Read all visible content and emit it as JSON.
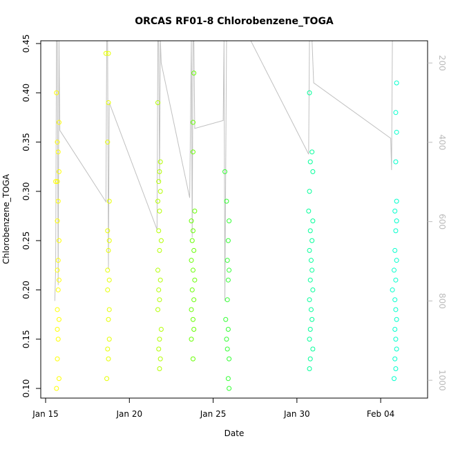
{
  "chart_data": {
    "type": "scatter",
    "title": "ORCAS RF01-8 Chlorobenzene_TOGA",
    "xlabel": "Date",
    "ylabel": "Chlorobenzene_TOGA",
    "xlim": [
      14.71,
      37.8
    ],
    "xticks": [
      {
        "value": 15,
        "label": "Jan 15"
      },
      {
        "value": 20,
        "label": "Jan 20"
      },
      {
        "value": 25,
        "label": "Jan 25"
      },
      {
        "value": 30,
        "label": "Jan 30"
      },
      {
        "value": 35,
        "label": "Feb 04"
      }
    ],
    "ylim": [
      0.0902,
      0.4528
    ],
    "yticks": [
      {
        "value": 0.1,
        "label": "0.10"
      },
      {
        "value": 0.15,
        "label": "0.15"
      },
      {
        "value": 0.2,
        "label": "0.20"
      },
      {
        "value": 0.25,
        "label": "0.25"
      },
      {
        "value": 0.3,
        "label": "0.30"
      },
      {
        "value": 0.35,
        "label": "0.35"
      },
      {
        "value": 0.4,
        "label": "0.40"
      },
      {
        "value": 0.45,
        "label": "0.45"
      }
    ],
    "y2lim": [
      1045,
      144
    ],
    "y2ticks": [
      200,
      400,
      600,
      800,
      1000
    ],
    "series": [
      {
        "color": "#ffff00",
        "x": [
          15.65,
          15.8,
          15.7,
          15.75,
          15.8,
          15.7,
          15.6,
          15.75,
          15.7,
          15.8,
          15.75,
          15.7,
          15.8,
          15.75,
          15.7,
          15.8,
          15.7,
          15.75,
          15.7,
          15.8,
          15.65
        ],
        "values": [
          0.4,
          0.37,
          0.35,
          0.34,
          0.32,
          0.31,
          0.31,
          0.29,
          0.27,
          0.25,
          0.23,
          0.22,
          0.21,
          0.2,
          0.18,
          0.17,
          0.16,
          0.15,
          0.13,
          0.11,
          0.1
        ]
      },
      {
        "color": "#e6ff00",
        "x": [
          18.6,
          18.75,
          18.75,
          18.7,
          18.8,
          18.7,
          18.8,
          18.75,
          18.7,
          18.8,
          18.7,
          18.8,
          18.75,
          18.8,
          18.7,
          18.75,
          18.65
        ],
        "values": [
          0.44,
          0.44,
          0.39,
          0.35,
          0.29,
          0.26,
          0.25,
          0.24,
          0.22,
          0.21,
          0.2,
          0.18,
          0.17,
          0.15,
          0.14,
          0.13,
          0.11
        ]
      },
      {
        "color": "#b3ff00",
        "x": [
          21.7,
          21.85,
          21.8,
          21.75,
          21.85,
          21.7,
          21.8,
          21.75,
          21.9,
          21.8,
          21.7,
          21.85,
          21.75,
          21.8,
          21.7,
          21.9,
          21.8,
          21.75,
          21.85,
          21.8
        ],
        "values": [
          0.39,
          0.33,
          0.32,
          0.31,
          0.3,
          0.29,
          0.28,
          0.26,
          0.25,
          0.24,
          0.22,
          0.21,
          0.2,
          0.19,
          0.18,
          0.16,
          0.15,
          0.14,
          0.13,
          0.12
        ]
      },
      {
        "color": "#66ff00",
        "x": [
          23.85,
          23.8,
          23.8,
          23.9,
          23.7,
          23.8,
          23.75,
          23.85,
          23.7,
          23.8,
          23.9,
          23.75,
          23.85,
          23.7,
          23.8,
          23.85,
          23.7,
          23.8
        ],
        "values": [
          0.42,
          0.37,
          0.34,
          0.28,
          0.27,
          0.26,
          0.25,
          0.24,
          0.23,
          0.22,
          0.21,
          0.2,
          0.19,
          0.18,
          0.17,
          0.16,
          0.15,
          0.13
        ]
      },
      {
        "color": "#33ff33",
        "x": [
          25.7,
          25.8,
          25.95,
          25.9,
          25.85,
          25.95,
          25.9,
          25.85,
          25.75,
          25.9,
          25.8,
          25.85,
          25.95,
          25.9,
          25.95
        ],
        "values": [
          0.32,
          0.29,
          0.27,
          0.25,
          0.23,
          0.22,
          0.21,
          0.19,
          0.17,
          0.16,
          0.15,
          0.14,
          0.13,
          0.11,
          0.1
        ]
      },
      {
        "color": "#00ff99",
        "x": [
          30.75,
          30.9,
          30.8,
          30.95,
          30.75,
          30.7,
          30.95,
          30.8,
          30.9,
          30.75,
          30.85,
          30.9,
          30.8,
          30.95,
          30.75,
          30.85,
          30.9,
          30.8,
          30.75,
          30.95,
          30.8,
          30.75
        ],
        "values": [
          0.4,
          0.34,
          0.33,
          0.32,
          0.3,
          0.28,
          0.27,
          0.26,
          0.25,
          0.24,
          0.23,
          0.22,
          0.21,
          0.2,
          0.19,
          0.18,
          0.17,
          0.16,
          0.15,
          0.14,
          0.13,
          0.12
        ]
      },
      {
        "color": "#00ffcc",
        "x": [
          35.95,
          35.9,
          35.95,
          35.9,
          35.95,
          35.85,
          35.95,
          35.9,
          35.85,
          35.95,
          35.8,
          35.9,
          35.7,
          35.85,
          35.9,
          35.95,
          35.85,
          35.9,
          35.95,
          35.85,
          35.9,
          35.8
        ],
        "values": [
          0.41,
          0.38,
          0.36,
          0.33,
          0.29,
          0.28,
          0.27,
          0.26,
          0.24,
          0.23,
          0.22,
          0.21,
          0.2,
          0.19,
          0.18,
          0.17,
          0.16,
          0.15,
          0.14,
          0.13,
          0.12,
          0.11
        ]
      },
      {
        "type": "line",
        "axis": "y2",
        "color": "#c0c0c0",
        "x": [
          15.55,
          15.6,
          15.65,
          15.7,
          15.75,
          15.8,
          15.85,
          18.6,
          18.65,
          18.7,
          18.75,
          18.8,
          21.65,
          21.7,
          21.75,
          21.8,
          21.85,
          21.9,
          23.6,
          23.7,
          23.75,
          23.8,
          23.85,
          23.9,
          25.6,
          25.65,
          25.7,
          25.8,
          25.9,
          25.95,
          27.2,
          30.7,
          30.75,
          30.8,
          30.85,
          30.9,
          31.0,
          35.6,
          35.65,
          35.7,
          35.75,
          35.8,
          35.85,
          35.9
        ],
        "values": [
          800,
          720,
          140,
          140,
          760,
          140,
          370,
          550,
          140,
          140,
          720,
          300,
          620,
          140,
          140,
          500,
          140,
          200,
          540,
          140,
          640,
          140,
          140,
          365,
          345,
          140,
          800,
          140,
          140,
          140,
          140,
          430,
          140,
          140,
          140,
          140,
          250,
          390,
          470,
          140,
          140,
          140,
          140,
          140
        ]
      }
    ]
  }
}
